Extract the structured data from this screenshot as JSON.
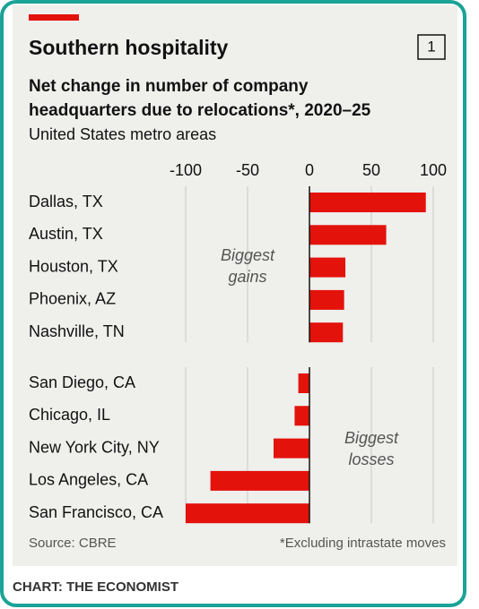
{
  "chart_data": {
    "type": "bar",
    "orientation": "horizontal",
    "chart_number": "1",
    "title": "Southern hospitality",
    "subtitle": [
      "Net change in number of company",
      "headquarters due to relocations*, 2020–25"
    ],
    "description": "United States metro areas",
    "xlim": [
      -100,
      100
    ],
    "xticks": [
      -100,
      -50,
      0,
      50,
      100
    ],
    "grid": true,
    "color": "#e3120b",
    "groups": [
      {
        "annotation": [
          "Biggest",
          "gains"
        ],
        "categories": [
          "Dallas, TX",
          "Austin, TX",
          "Houston, TX",
          "Phoenix, AZ",
          "Nashville, TN"
        ],
        "values": [
          94,
          62,
          29,
          28,
          27
        ]
      },
      {
        "annotation": [
          "Biggest",
          "losses"
        ],
        "categories": [
          "San Diego, CA",
          "Chicago, IL",
          "New York City, NY",
          "Los Angeles, CA",
          "San Francisco, CA"
        ],
        "values": [
          -9,
          -12,
          -29,
          -80,
          -100
        ]
      }
    ],
    "source": "Source: CBRE",
    "note": "*Excluding intrastate moves"
  },
  "footer": {
    "credit": "CHART: THE ECONOMIST"
  }
}
